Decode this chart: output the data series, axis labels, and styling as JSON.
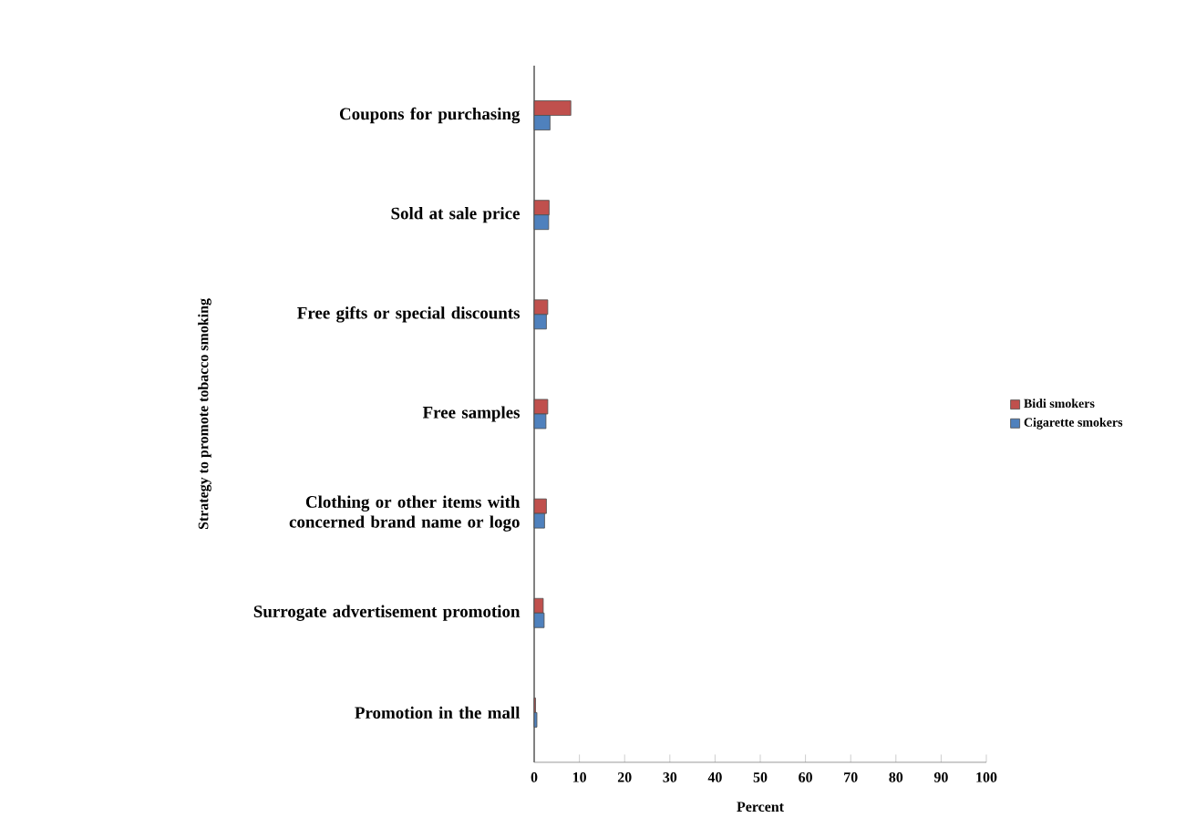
{
  "chart_data": {
    "type": "bar",
    "orientation": "horizontal",
    "xlabel": "Percent",
    "ylabel": "Strategy to promote tobacco smoking",
    "categories": [
      "Coupons for purchasing",
      "Sold at sale price",
      "Free gifts or special discounts",
      "Free samples",
      "Clothing or other items with concerned brand name or logo",
      "Surrogate advertisement promotion",
      "Promotion in the mall"
    ],
    "series": [
      {
        "name": "Bidi smokers",
        "color": "#c0504d",
        "values": [
          8.1,
          3.3,
          3.0,
          3.0,
          2.7,
          2.0,
          0.3
        ]
      },
      {
        "name": "Cigarette smokers",
        "color": "#4f81bd",
        "values": [
          3.5,
          3.2,
          2.7,
          2.6,
          2.3,
          2.2,
          0.6
        ]
      }
    ],
    "xlim": [
      0,
      100
    ],
    "xticks": [
      0,
      10,
      20,
      30,
      40,
      50,
      60,
      70,
      80,
      90,
      100
    ],
    "legend": "right"
  }
}
